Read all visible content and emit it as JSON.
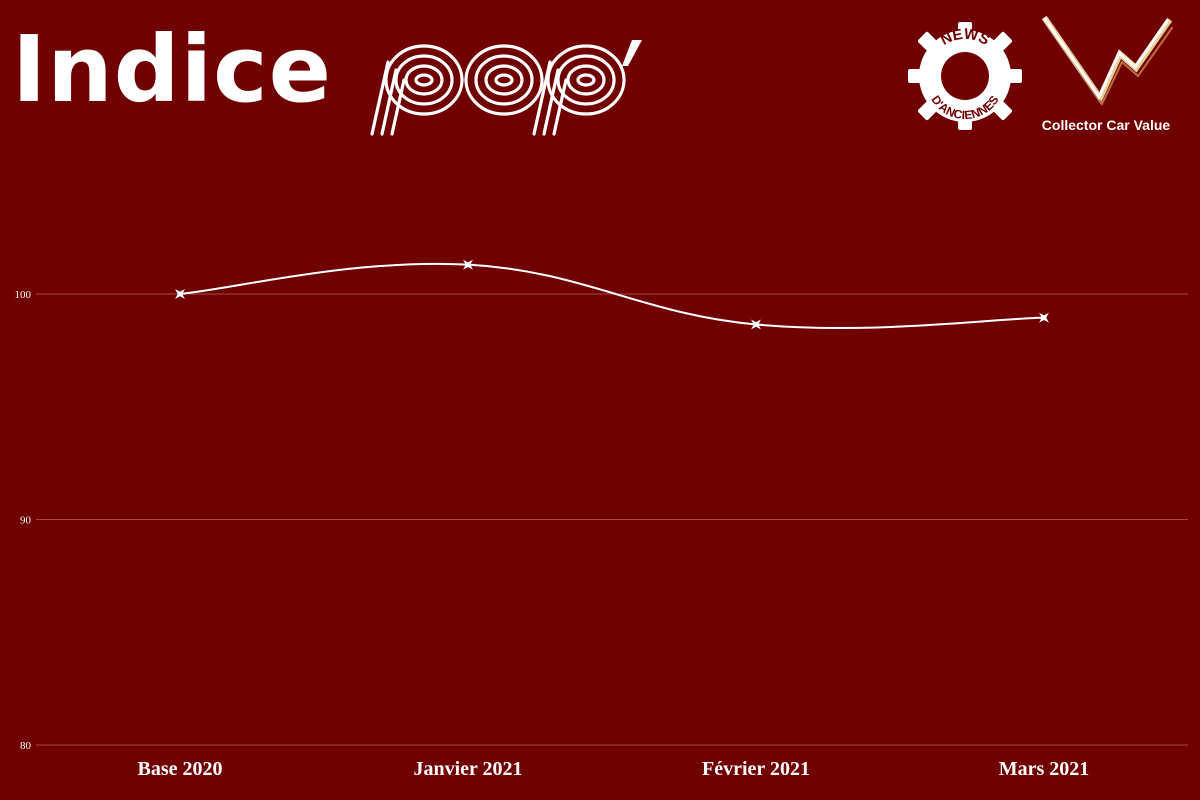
{
  "header": {
    "title_word": "Indice",
    "title_brand": "pop'",
    "logo_news": "NEWS D'ANCIENNES",
    "logo_ccv_label": "Collector Car Value"
  },
  "colors": {
    "background": "#700000",
    "line": "#ffffff",
    "grid": "#a04848",
    "text": "#ffffff"
  },
  "chart_data": {
    "type": "line",
    "title": "",
    "xlabel": "",
    "ylabel": "",
    "categories": [
      "Base 2020",
      "Janvier 2021",
      "Février 2021",
      "Mars 2021"
    ],
    "series": [
      {
        "values": [
          100,
          101.3,
          98.65,
          98.95
        ]
      }
    ],
    "ylim": [
      80,
      105
    ],
    "yticks": [
      80,
      90,
      100
    ],
    "grid": true,
    "marker": "star",
    "smooth": true,
    "legend": "none"
  }
}
